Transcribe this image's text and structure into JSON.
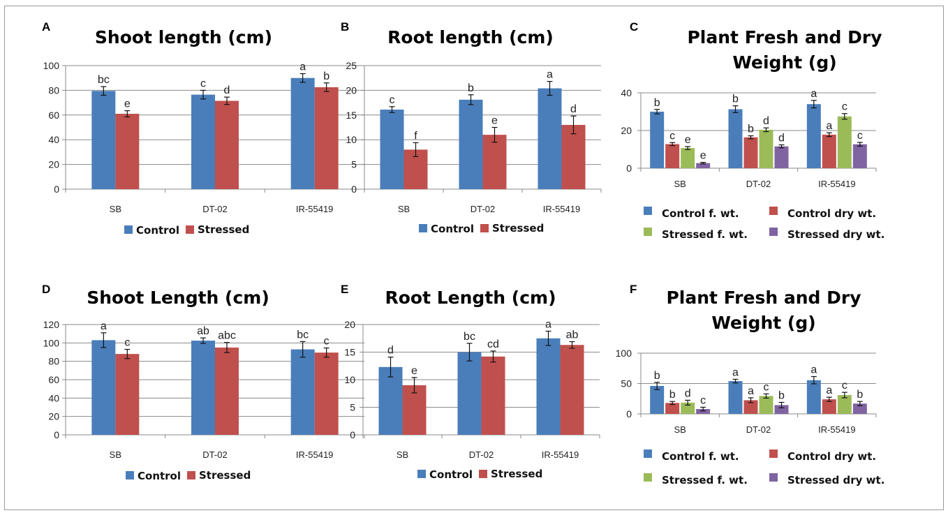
{
  "chart_data": [
    {
      "panel": "A",
      "type": "bar",
      "title": "Shoot length (cm)",
      "categories": [
        "SB",
        "DT-02",
        "IR-55419"
      ],
      "ylim": [
        0,
        100
      ],
      "yticks": [
        0,
        20,
        40,
        60,
        80,
        100
      ],
      "legend_position": "bottom",
      "series": [
        {
          "name": "Control",
          "color": "#4a7ebb",
          "values": [
            79.5,
            76.5,
            90
          ],
          "errors": [
            3.5,
            3.5,
            3.5
          ],
          "letters": [
            "bc",
            "c",
            "a"
          ]
        },
        {
          "name": "Stressed",
          "color": "#c0504d",
          "values": [
            61,
            71.5,
            82.5
          ],
          "errors": [
            2.5,
            3,
            3.5
          ],
          "letters": [
            "e",
            "d",
            "b"
          ]
        }
      ]
    },
    {
      "panel": "B",
      "type": "bar",
      "title": "Root length (cm)",
      "categories": [
        "SB",
        "DT-02",
        "IR-55419"
      ],
      "ylim": [
        0,
        25
      ],
      "yticks": [
        0,
        5,
        10,
        15,
        20,
        25
      ],
      "legend_position": "bottom",
      "series": [
        {
          "name": "Control",
          "color": "#4a7ebb",
          "values": [
            16.1,
            18.1,
            20.4
          ],
          "errors": [
            0.6,
            1,
            1.4
          ],
          "letters": [
            "c",
            "b",
            "a"
          ]
        },
        {
          "name": "Stressed",
          "color": "#c0504d",
          "values": [
            8,
            11,
            13
          ],
          "errors": [
            1.4,
            1.5,
            1.8
          ],
          "letters": [
            "f",
            "e",
            "d"
          ]
        }
      ]
    },
    {
      "panel": "C",
      "type": "bar",
      "title": "Plant Fresh and Dry Weight (g)",
      "title_lines": [
        "Plant Fresh and Dry",
        "Weight (g)"
      ],
      "categories": [
        "SB",
        "DT-02",
        "IR-55419"
      ],
      "ylim": [
        0,
        40
      ],
      "yticks": [
        0,
        20,
        40
      ],
      "legend_position": "bottom",
      "series": [
        {
          "name": "Control f. wt.",
          "color": "#4a7ebb",
          "values": [
            30,
            31.3,
            34
          ],
          "errors": [
            1.2,
            1.8,
            2
          ],
          "letters": [
            "b",
            "b",
            "a"
          ]
        },
        {
          "name": "Control dry wt.",
          "color": "#c0504d",
          "values": [
            12.8,
            16.4,
            17.8
          ],
          "errors": [
            0.8,
            0.8,
            1
          ],
          "letters": [
            "c",
            "b",
            "a"
          ]
        },
        {
          "name": "Stressed f. wt.",
          "color": "#9bbb59",
          "values": [
            10.7,
            20.4,
            27.5
          ],
          "errors": [
            0.8,
            1,
            1.5
          ],
          "letters": [
            "e",
            "d",
            "c"
          ]
        },
        {
          "name": "Stressed dry wt.",
          "color": "#8064a2",
          "values": [
            2.7,
            11.6,
            12.7
          ],
          "errors": [
            0.4,
            0.8,
            1
          ],
          "letters": [
            "e",
            "d",
            "c"
          ]
        }
      ]
    },
    {
      "panel": "D",
      "type": "bar",
      "title": "Shoot Length (cm)",
      "categories": [
        "SB",
        "DT-02",
        "IR-55419"
      ],
      "ylim": [
        0,
        120
      ],
      "yticks": [
        0,
        20,
        40,
        60,
        80,
        100,
        120
      ],
      "legend_position": "bottom",
      "series": [
        {
          "name": "Control",
          "color": "#4a7ebb",
          "values": [
            103,
            102.5,
            93
          ],
          "errors": [
            8,
            3,
            8.5
          ],
          "letters": [
            "a",
            "ab",
            "bc"
          ]
        },
        {
          "name": "Stressed",
          "color": "#c0504d",
          "values": [
            88,
            95,
            89.5
          ],
          "errors": [
            5,
            5.5,
            5
          ],
          "letters": [
            "c",
            "abc",
            "c"
          ]
        }
      ]
    },
    {
      "panel": "E",
      "type": "bar",
      "title": "Root Length (cm)",
      "categories": [
        "SB",
        "DT-02",
        "IR-55419"
      ],
      "ylim": [
        0,
        20
      ],
      "yticks": [
        0,
        5,
        10,
        15,
        20
      ],
      "legend_position": "bottom",
      "series": [
        {
          "name": "Control",
          "color": "#4a7ebb",
          "values": [
            12.3,
            15,
            17.5
          ],
          "errors": [
            1.8,
            1.6,
            1.3
          ],
          "letters": [
            "d",
            "bc",
            "a"
          ]
        },
        {
          "name": "Stressed",
          "color": "#c0504d",
          "values": [
            9,
            14.2,
            16.3
          ],
          "errors": [
            1.4,
            1,
            0.6
          ],
          "letters": [
            "e",
            "cd",
            "ab"
          ]
        }
      ]
    },
    {
      "panel": "F",
      "type": "bar",
      "title": "Plant Fresh and Dry Weight (g)",
      "title_lines": [
        "Plant Fresh and Dry",
        "Weight (g)"
      ],
      "categories": [
        "SB",
        "DT-02",
        "IR-55419"
      ],
      "ylim": [
        0,
        100
      ],
      "yticks": [
        0,
        50,
        100
      ],
      "legend_position": "bottom",
      "series": [
        {
          "name": "Control f. wt.",
          "color": "#4a7ebb",
          "values": [
            46,
            54,
            55.5
          ],
          "errors": [
            6,
            3,
            6
          ],
          "letters": [
            "b",
            "a",
            "a"
          ]
        },
        {
          "name": "Control dry wt.",
          "color": "#c0504d",
          "values": [
            18,
            22.5,
            24
          ],
          "errors": [
            2.5,
            4,
            3.5
          ],
          "letters": [
            "b",
            "a",
            "a"
          ]
        },
        {
          "name": "Stressed f. wt.",
          "color": "#9bbb59",
          "values": [
            18.5,
            29.5,
            31
          ],
          "errors": [
            4,
            3.5,
            4.5
          ],
          "letters": [
            "d",
            "c",
            "c"
          ]
        },
        {
          "name": "Stressed dry wt.",
          "color": "#8064a2",
          "values": [
            8,
            14.5,
            17
          ],
          "errors": [
            3,
            4.5,
            3.5
          ],
          "letters": [
            "c",
            "b",
            "b"
          ]
        }
      ]
    }
  ]
}
